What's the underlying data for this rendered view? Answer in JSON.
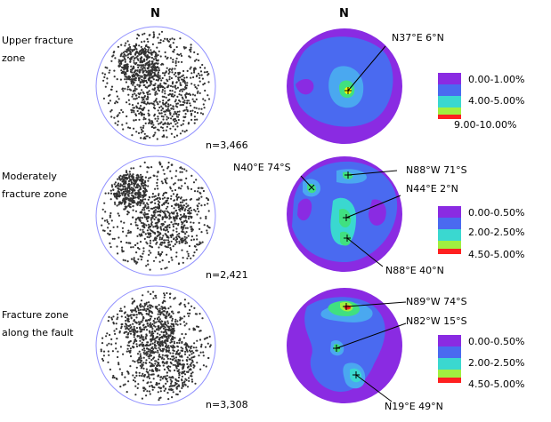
{
  "headers": {
    "left_north": "N",
    "right_north": "N"
  },
  "rows": [
    {
      "label": "Upper fracture\nzone",
      "count": "n=3,466",
      "annotations": [
        {
          "text": "N37°E 6°N"
        }
      ],
      "legend": [
        "0.00-1.00%",
        "4.00-5.00%",
        "9.00-10.00%"
      ]
    },
    {
      "label": "Moderately\nfracture zone",
      "count": "n=2,421",
      "annotations": [
        {
          "text": "N40°E 74°S"
        },
        {
          "text": "N88°W 71°S"
        },
        {
          "text": "N44°E 2°N"
        },
        {
          "text": "N88°E 40°N"
        }
      ],
      "legend": [
        "0.00-0.50%",
        "2.00-2.50%",
        "4.50-5.00%"
      ]
    },
    {
      "label": "Fracture zone\nalong the fault",
      "count": "n=3,308",
      "annotations": [
        {
          "text": "N89°W 74°S"
        },
        {
          "text": "N82°W 15°S"
        },
        {
          "text": "N19°E 49°N"
        }
      ],
      "legend": [
        "0.00-0.50%",
        "2.00-2.50%",
        "4.50-5.00%"
      ]
    }
  ],
  "colors": {
    "outer": "#8a2be2",
    "level1": "#4a6af0",
    "level2": "#4aa8f0",
    "level3": "#3ad8d0",
    "level4": "#40e080",
    "level5": "#a0f040",
    "peak": "#ffff00",
    "hot": "#ff2020",
    "dot": "#333333",
    "net_ring": "#9090ff"
  }
}
